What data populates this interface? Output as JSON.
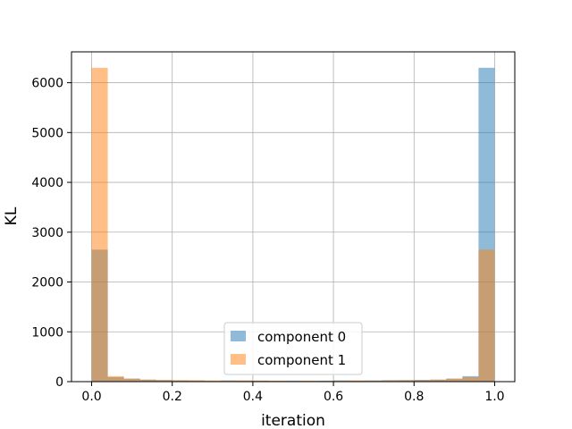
{
  "chart_data": {
    "type": "bar",
    "title": "",
    "xlabel": "iteration",
    "ylabel": "KL",
    "xlim": [
      -0.05,
      1.05
    ],
    "ylim": [
      0,
      6620
    ],
    "grid": true,
    "legend_position": "lower-center",
    "x_ticks": [
      0.0,
      0.2,
      0.4,
      0.6,
      0.8,
      1.0
    ],
    "x_tick_labels": [
      "0.0",
      "0.2",
      "0.4",
      "0.6",
      "0.8",
      "1.0"
    ],
    "y_ticks": [
      0,
      1000,
      2000,
      3000,
      4000,
      5000,
      6000
    ],
    "y_tick_labels": [
      "0",
      "1000",
      "2000",
      "3000",
      "4000",
      "5000",
      "6000"
    ],
    "bin_edges": [
      0.0,
      0.04,
      0.08,
      0.12,
      0.16,
      0.2,
      0.24,
      0.28,
      0.32,
      0.36,
      0.4,
      0.44,
      0.48,
      0.52,
      0.56,
      0.6,
      0.64,
      0.68,
      0.72,
      0.76,
      0.8,
      0.84,
      0.88,
      0.92,
      0.96,
      1.0
    ],
    "series": [
      {
        "name": "component 0",
        "color": "#1f77b4",
        "values": [
          2650,
          90,
          60,
          40,
          30,
          25,
          20,
          15,
          25,
          20,
          20,
          15,
          20,
          15,
          20,
          25,
          20,
          25,
          30,
          30,
          35,
          40,
          60,
          110,
          6300
        ]
      },
      {
        "name": "component 1",
        "color": "#ff7f0e",
        "values": [
          6300,
          110,
          60,
          40,
          35,
          30,
          30,
          25,
          20,
          25,
          20,
          20,
          15,
          20,
          15,
          20,
          25,
          20,
          25,
          30,
          30,
          40,
          60,
          90,
          2650
        ]
      }
    ]
  }
}
